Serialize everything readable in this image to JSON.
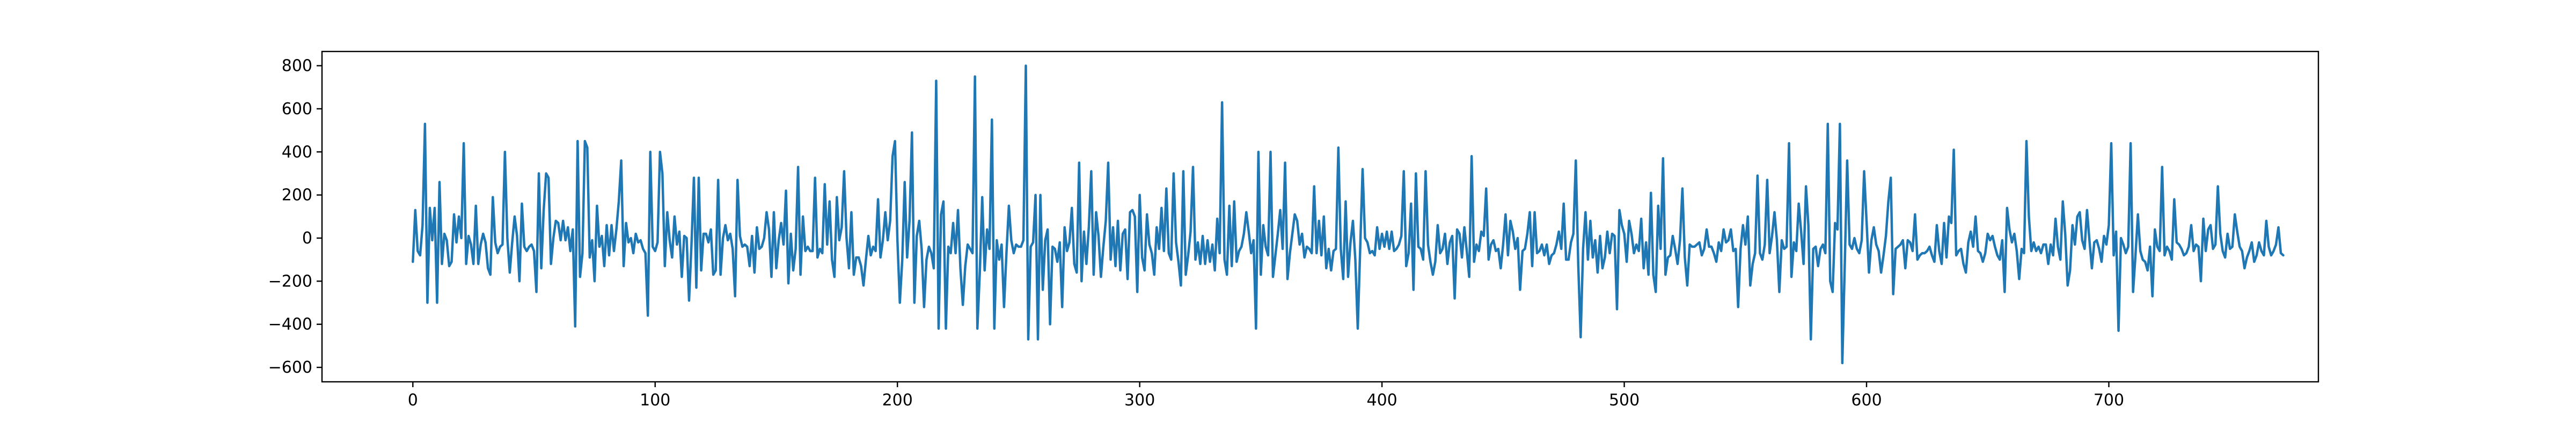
{
  "chart_data": {
    "type": "line",
    "title": "",
    "xlabel": "",
    "ylabel": "",
    "xlim": [
      -37.5,
      786.5
    ],
    "ylim": [
      -667,
      866
    ],
    "xticks": [
      0,
      100,
      200,
      300,
      400,
      500,
      600,
      700
    ],
    "xtick_labels": [
      "0",
      "100",
      "200",
      "300",
      "400",
      "500",
      "600",
      "700"
    ],
    "yticks": [
      -600,
      -400,
      -200,
      0,
      200,
      400,
      600,
      800
    ],
    "ytick_labels": [
      "−600",
      "−400",
      "−200",
      "0",
      "200",
      "400",
      "600",
      "800"
    ],
    "grid": false,
    "legend": "none",
    "series": [
      {
        "color": "#1f77b4",
        "x_start": 0,
        "x_step": 1,
        "values": [
          -110,
          130,
          -60,
          -80,
          60,
          530,
          -300,
          140,
          -10,
          140,
          -300,
          260,
          -120,
          20,
          -10,
          -130,
          -110,
          110,
          -20,
          100,
          0,
          440,
          -120,
          10,
          -30,
          -120,
          150,
          -120,
          -30,
          20,
          -20,
          -140,
          -170,
          190,
          -20,
          -70,
          -40,
          -30,
          400,
          0,
          -160,
          -20,
          100,
          10,
          -200,
          160,
          -40,
          -60,
          -40,
          -30,
          -60,
          -250,
          300,
          -140,
          130,
          300,
          280,
          -120,
          0,
          80,
          70,
          -10,
          80,
          -10,
          50,
          -60,
          40,
          -410,
          450,
          -180,
          -70,
          450,
          420,
          -90,
          -10,
          -200,
          150,
          -40,
          10,
          -130,
          60,
          -80,
          60,
          -60,
          40,
          170,
          360,
          -130,
          70,
          -20,
          0,
          -70,
          20,
          -20,
          -10,
          -50,
          -70,
          -360,
          400,
          -40,
          -60,
          -20,
          400,
          300,
          -130,
          120,
          -10,
          -90,
          100,
          -30,
          30,
          -180,
          10,
          0,
          -290,
          -30,
          280,
          -230,
          280,
          -150,
          20,
          20,
          -20,
          40,
          -170,
          -150,
          270,
          -170,
          0,
          60,
          -10,
          20,
          -50,
          -270,
          270,
          10,
          -40,
          -30,
          -40,
          -130,
          10,
          -160,
          50,
          -50,
          -40,
          0,
          120,
          40,
          -180,
          120,
          -140,
          -10,
          70,
          -30,
          220,
          -210,
          20,
          -150,
          -50,
          330,
          -170,
          100,
          -60,
          -40,
          -60,
          -60,
          280,
          -90,
          -50,
          -70,
          250,
          -30,
          170,
          -100,
          -180,
          190,
          -10,
          50,
          310,
          0,
          -140,
          120,
          -170,
          -90,
          -90,
          -130,
          -220,
          -100,
          10,
          -80,
          -40,
          -60,
          180,
          -90,
          -10,
          120,
          -10,
          80,
          380,
          450,
          -10,
          -300,
          -100,
          260,
          -90,
          80,
          490,
          -300,
          10,
          80,
          -50,
          -320,
          -100,
          -40,
          -70,
          -140,
          730,
          -420,
          110,
          170,
          -420,
          -40,
          -70,
          70,
          -70,
          130,
          -140,
          -310,
          -130,
          -30,
          -50,
          -70,
          750,
          -420,
          -160,
          190,
          -150,
          40,
          -50,
          550,
          -420,
          -10,
          -100,
          -30,
          -320,
          -70,
          150,
          -10,
          -70,
          -30,
          -40,
          -40,
          -10,
          800,
          -470,
          -40,
          -20,
          200,
          -470,
          200,
          -240,
          -10,
          40,
          -400,
          -40,
          -50,
          -110,
          -20,
          -320,
          50,
          -60,
          -20,
          140,
          -120,
          -160,
          350,
          -200,
          30,
          -120,
          50,
          310,
          -170,
          120,
          10,
          -180,
          -40,
          80,
          350,
          -100,
          50,
          -130,
          80,
          -150,
          20,
          40,
          -190,
          120,
          130,
          100,
          -250,
          200,
          -90,
          -150,
          110,
          -30,
          -70,
          -170,
          50,
          -50,
          140,
          -60,
          230,
          -70,
          -100,
          300,
          -20,
          -110,
          -220,
          310,
          -170,
          -80,
          30,
          330,
          -100,
          -20,
          -120,
          10,
          -120,
          -10,
          -110,
          -30,
          -150,
          90,
          -70,
          630,
          -100,
          -170,
          150,
          -130,
          170,
          -110,
          -60,
          -40,
          20,
          120,
          30,
          -70,
          -10,
          -420,
          400,
          -170,
          60,
          -40,
          -80,
          400,
          -180,
          -80,
          20,
          130,
          -50,
          350,
          -190,
          -70,
          20,
          110,
          80,
          -30,
          20,
          -90,
          -40,
          -50,
          -70,
          240,
          -70,
          80,
          -80,
          100,
          -140,
          -50,
          -150,
          -60,
          -50,
          420,
          -50,
          -190,
          170,
          -180,
          -20,
          80,
          -100,
          -420,
          -50,
          320,
          0,
          -20,
          -70,
          -60,
          -80,
          50,
          -50,
          20,
          -40,
          30,
          -50,
          30,
          -60,
          -50,
          -30,
          10,
          310,
          -130,
          -70,
          160,
          -240,
          300,
          -40,
          -50,
          -100,
          310,
          -30,
          -110,
          -170,
          -110,
          60,
          -70,
          -50,
          20,
          -120,
          -20,
          10,
          -280,
          40,
          20,
          -90,
          50,
          -60,
          -180,
          380,
          -110,
          -30,
          -60,
          30,
          10,
          230,
          -100,
          -30,
          -10,
          -60,
          -50,
          -140,
          -30,
          110,
          -80,
          80,
          30,
          -50,
          0,
          -240,
          -60,
          -50,
          20,
          120,
          -130,
          120,
          -70,
          -60,
          -30,
          -80,
          -30,
          -120,
          -80,
          -70,
          -30,
          30,
          -50,
          160,
          -100,
          -100,
          -20,
          20,
          360,
          -120,
          -460,
          -50,
          120,
          -100,
          80,
          -90,
          -10,
          -160,
          10,
          -140,
          -90,
          30,
          -70,
          20,
          10,
          -330,
          130,
          60,
          20,
          -110,
          80,
          20,
          -70,
          -30,
          -60,
          90,
          -140,
          -20,
          -170,
          210,
          -170,
          -250,
          150,
          -50,
          370,
          -170,
          -90,
          -80,
          10,
          -50,
          -120,
          -10,
          230,
          -90,
          -220,
          -30,
          -40,
          -40,
          -30,
          -20,
          -80,
          -50,
          40,
          -40,
          -40,
          -70,
          -110,
          -20,
          -60,
          40,
          -20,
          -10,
          40,
          -60,
          -50,
          -320,
          -50,
          60,
          -30,
          100,
          -220,
          -120,
          -70,
          290,
          -70,
          -100,
          -30,
          270,
          -70,
          10,
          120,
          -10,
          -250,
          -10,
          -50,
          -40,
          440,
          -180,
          -20,
          -60,
          160,
          30,
          -120,
          240,
          60,
          -470,
          -50,
          -40,
          -130,
          -50,
          -30,
          -70,
          530,
          -200,
          -250,
          70,
          40,
          530,
          -580,
          -130,
          360,
          -30,
          -50,
          0,
          -50,
          -70,
          -10,
          310,
          80,
          -160,
          -10,
          50,
          -30,
          -60,
          -160,
          -80,
          10,
          170,
          280,
          -260,
          -50,
          -40,
          -30,
          -10,
          -140,
          -10,
          -20,
          -60,
          110,
          -100,
          -80,
          -70,
          -70,
          -60,
          -40,
          -80,
          -110,
          60,
          -60,
          -120,
          70,
          -90,
          100,
          70,
          410,
          -80,
          -60,
          -50,
          -120,
          -160,
          -20,
          30,
          -40,
          100,
          -60,
          -70,
          -110,
          -70,
          20,
          -10,
          10,
          -40,
          -80,
          -100,
          -10,
          -250,
          140,
          40,
          -20,
          20,
          -60,
          -190,
          -50,
          -70,
          450,
          100,
          -60,
          -20,
          -60,
          -40,
          -70,
          -30,
          -30,
          -120,
          -30,
          -80,
          90,
          -40,
          -100,
          170,
          20,
          -220,
          -150,
          60,
          -30,
          100,
          120,
          -10,
          -50,
          130,
          -10,
          -140,
          -20,
          -10,
          -50,
          -110,
          10,
          -30,
          60,
          440,
          -80,
          30,
          -430,
          0,
          -30,
          -70,
          -40,
          440,
          -250,
          -80,
          110,
          -60,
          -100,
          -110,
          -150,
          -40,
          -270,
          40,
          -40,
          -60,
          330,
          -80,
          -40,
          -60,
          -100,
          180,
          -20,
          -30,
          -50,
          -80,
          -70,
          -40,
          60,
          -60,
          -30,
          -40,
          -200,
          90,
          -60,
          40,
          60,
          -50,
          -30,
          240,
          20,
          -60,
          -90,
          20,
          -50,
          -40,
          110,
          30,
          -40,
          -60,
          -140,
          -90,
          -60,
          -20,
          -110,
          -80,
          -20,
          -60,
          -80,
          80,
          -40,
          -80,
          -60,
          -30,
          50,
          -70,
          -80
        ]
      }
    ]
  }
}
